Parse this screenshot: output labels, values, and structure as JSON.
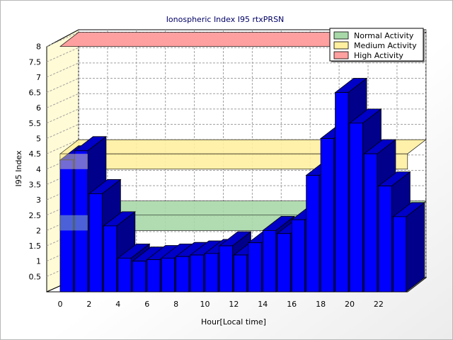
{
  "chart_data": {
    "type": "bar",
    "title": "Ionospheric Index I95 rtxPRSN",
    "xlabel": "Hour[Local time]",
    "ylabel": "I95 Index",
    "ylim": [
      0,
      8
    ],
    "y_ticks": [
      "0.5",
      "1",
      "1.5",
      "2",
      "2.5",
      "3",
      "3.5",
      "4",
      "4.5",
      "5",
      "5.5",
      "6",
      "6.5",
      "7",
      "7.5",
      "8"
    ],
    "x_ticks": [
      "0",
      "2",
      "4",
      "6",
      "8",
      "10",
      "12",
      "14",
      "16",
      "18",
      "20",
      "22"
    ],
    "hours": [
      0,
      1,
      2,
      3,
      4,
      5,
      6,
      7,
      8,
      9,
      10,
      11,
      12,
      13,
      14,
      15,
      16,
      17,
      18,
      19,
      20,
      21,
      22,
      23
    ],
    "values": [
      4.3,
      4.6,
      3.2,
      2.15,
      1.1,
      1.0,
      1.05,
      1.1,
      1.15,
      1.2,
      1.25,
      1.5,
      1.2,
      1.6,
      2.0,
      1.9,
      2.35,
      3.8,
      5.0,
      6.5,
      5.5,
      4.5,
      3.45,
      2.45
    ],
    "bar_color": "#0000ff",
    "bands": [
      {
        "name": "Normal Activity",
        "from": 2.0,
        "to": 2.5,
        "color": "#a8d8a8"
      },
      {
        "name": "Medium Activity",
        "from": 4.0,
        "to": 4.5,
        "color": "#fff0a0"
      },
      {
        "name": "High Activity",
        "from": 8.0,
        "to": 8.5,
        "color": "#ffa0a0"
      }
    ],
    "legend_position": "top-right",
    "grid": true
  }
}
